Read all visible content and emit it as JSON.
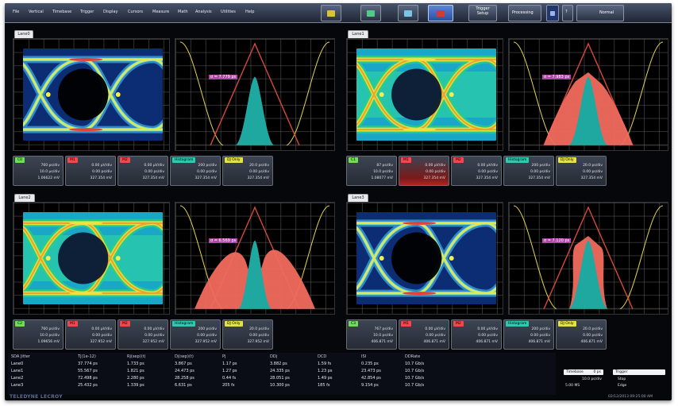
{
  "menu": {
    "items": [
      "File",
      "Vertical",
      "Timebase",
      "Trigger",
      "Display",
      "Cursors",
      "Measure",
      "Math",
      "Analysis",
      "Utilities",
      "Help"
    ],
    "trigger_setup": "Trigger Setup",
    "processing": "Processing",
    "mode": "Normal"
  },
  "quadrants": [
    {
      "tab": "Lane0",
      "marker": "σ = 7.779 ps",
      "params": [
        {
          "label": "C0",
          "color": "#6fdc5a",
          "lines": [
            "760 ps/div",
            "10.0 µs/div",
            "1.06622 mV"
          ]
        },
        {
          "label": "M1",
          "color": "#ef4a4a",
          "lines": [
            "0.00 µV/div",
            "0.00 ps/div",
            "327.354 mV"
          ]
        },
        {
          "label": "M2",
          "color": "#ef4a4a",
          "lines": [
            "0.00 µV/div",
            "0.00 ps/div",
            "327.354 mV"
          ]
        },
        {
          "label": "Histogram",
          "color": "#33c7b0",
          "lines": [
            "200 ps/div",
            "0.00 ps/div",
            "327.354 mV"
          ]
        },
        {
          "label": "DJ Only",
          "color": "#e6e14a",
          "lines": [
            "20.0 ps/div",
            "0.00 ps/div",
            "327.354 mV"
          ]
        }
      ]
    },
    {
      "tab": "Lane1",
      "marker": "σ = 7.983 ps",
      "params": [
        {
          "label": "C1",
          "color": "#6fdc5a",
          "lines": [
            "87 ps/div",
            "10.0 ps/div",
            "1.08077 mV"
          ]
        },
        {
          "label": "M1",
          "color": "#ef4a4a",
          "lines": [
            "0.00 µV/div",
            "0.00 ps/div",
            "327.354 mV"
          ]
        },
        {
          "label": "M2",
          "color": "#ef4a4a",
          "lines": [
            "0.00 µV/div",
            "0.00 ps/div",
            "327.354 mV"
          ]
        },
        {
          "label": "Histogram",
          "color": "#33c7b0",
          "lines": [
            "200 ps/div",
            "0.00 ps/div",
            "327.354 mV"
          ]
        },
        {
          "label": "DJ Only",
          "color": "#e6e14a",
          "lines": [
            "20.0 ps/div",
            "0.00 ps/div",
            "327.354 mV"
          ]
        }
      ]
    },
    {
      "tab": "Lane2",
      "marker": "σ = 6.569 ps",
      "params": [
        {
          "label": "C2",
          "color": "#6fdc5a",
          "lines": [
            "760 ps/div",
            "10.0 ps/div",
            "1.09656 mV"
          ]
        },
        {
          "label": "M1",
          "color": "#ef4a4a",
          "lines": [
            "0.00 µV/div",
            "0.00 ps/div",
            "327.952 mV"
          ]
        },
        {
          "label": "M2",
          "color": "#ef4a4a",
          "lines": [
            "0.00 µV/div",
            "0.00 ps/div",
            "327.952 mV"
          ]
        },
        {
          "label": "Histogram",
          "color": "#33c7b0",
          "lines": [
            "200 ps/div",
            "0.00 ps/div",
            "327.952 mV"
          ]
        },
        {
          "label": "DJ Only",
          "color": "#e6e14a",
          "lines": [
            "20.0 ps/div",
            "0.00 ps/div",
            "327.952 mV"
          ]
        }
      ]
    },
    {
      "tab": "Lane3",
      "marker": "σ = 7.120 ps",
      "params": [
        {
          "label": "C3",
          "color": "#6fdc5a",
          "lines": [
            "767 ps/div",
            "10.0 ps/div",
            "406.871 mV"
          ]
        },
        {
          "label": "M1",
          "color": "#ef4a4a",
          "lines": [
            "0.00 µV/div",
            "0.00 ps/div",
            "406.871 mV"
          ]
        },
        {
          "label": "M2",
          "color": "#ef4a4a",
          "lines": [
            "0.00 µV/div",
            "0.00 ps/div",
            "406.871 mV"
          ]
        },
        {
          "label": "Histogram",
          "color": "#33c7b0",
          "lines": [
            "200 ps/div",
            "0.00 ps/div",
            "406.871 mV"
          ]
        },
        {
          "label": "DJ Only",
          "color": "#e6e14a",
          "lines": [
            "20.0 ps/div",
            "0.00 ps/div",
            "406.871 mV"
          ]
        }
      ]
    }
  ],
  "table": {
    "headers": [
      "SDA Jitter",
      "Tj(1e-12)",
      "Rj(sep)(t)",
      "Dj(sep)(t)",
      "Pj",
      "DDj",
      "DCD",
      "ISI",
      "DDRate"
    ],
    "rows": [
      [
        "Lane0",
        "37.774 ps",
        "1.733 ps",
        "3.867 ps",
        "1.17 ps",
        "3.882 ps",
        "1.59 fs",
        "0.235 ps",
        "10.7 Gb/s"
      ],
      [
        "Lane1",
        "55.567 ps",
        "1.821 ps",
        "24.473 ps",
        "1.27 ps",
        "24.335 ps",
        "1.23 ps",
        "23.473 ps",
        "10.7 Gb/s"
      ],
      [
        "Lane2",
        "72.498 ps",
        "2.280 ps",
        "28.258 ps",
        "0.44 fs",
        "28.051 ps",
        "1.49 ps",
        "42.854 ps",
        "10.7 Gb/s"
      ],
      [
        "Lane3",
        "25.432 ps",
        "1.339 ps",
        "6.631 ps",
        "205 fs",
        "10.300 ps",
        "185 fs",
        "9.154 ps",
        "10.7 Gb/s"
      ]
    ]
  },
  "info": {
    "timebase_label": "Timebase",
    "timebase_value": "0 ps",
    "trigger_label": "Trigger",
    "row1_left": "10.0 ps/div",
    "row1_right": "Stop",
    "row2_left": "5.00 MS",
    "row2_right": "Edge"
  },
  "brand": "TELEDYNE LECROY",
  "datetime": "02/12/2013 09:25:00 AM"
}
